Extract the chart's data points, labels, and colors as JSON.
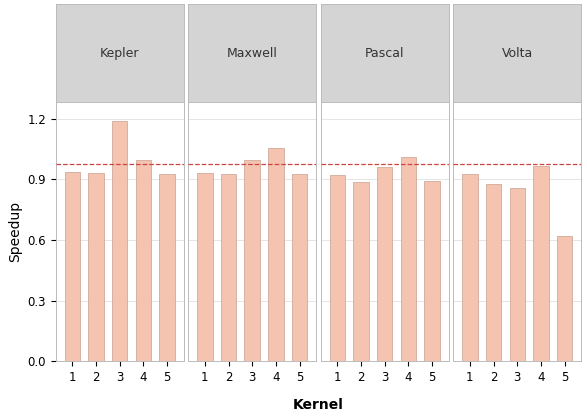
{
  "gpus": [
    "Kepler",
    "Maxwell",
    "Pascal",
    "Volta"
  ],
  "kernels": [
    1,
    2,
    3,
    4,
    5
  ],
  "values": {
    "Kepler": [
      0.935,
      0.93,
      1.19,
      0.995,
      0.925
    ],
    "Maxwell": [
      0.93,
      0.925,
      0.995,
      1.055,
      0.928
    ],
    "Pascal": [
      0.92,
      0.888,
      0.96,
      1.01,
      0.893
    ],
    "Volta": [
      0.928,
      0.878,
      0.855,
      0.965,
      0.62
    ]
  },
  "hline_y": 0.975,
  "bar_color": "#f5c4b0",
  "bar_edge_color": "#c8a090",
  "hline_color": "#cc4444",
  "background_color": "#ffffff",
  "panel_background": "#ffffff",
  "header_background": "#d4d4d4",
  "header_text_color": "#333333",
  "grid_color": "#e0e0e0",
  "spine_color": "#bbbbbb",
  "ylabel": "Speedup",
  "xlabel": "Kernel",
  "ylim": [
    0.0,
    1.28
  ],
  "yticks": [
    0.0,
    0.3,
    0.6,
    0.9,
    1.2
  ],
  "ytick_labels": [
    "0.0",
    "0.3",
    "0.6",
    "0.9",
    "1.2"
  ],
  "title_fontsize": 9,
  "label_fontsize": 10,
  "tick_fontsize": 8.5,
  "bar_width": 0.65
}
